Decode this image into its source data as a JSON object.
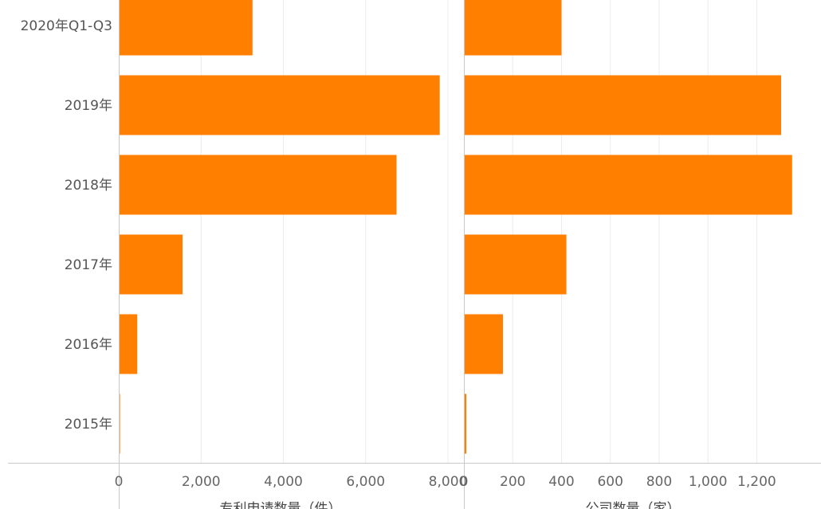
{
  "colors": {
    "bar": "#ff7f00",
    "grid": "#ececec",
    "axis": "#c8c8c8"
  },
  "chart_data": [
    {
      "type": "bar",
      "orientation": "horizontal",
      "categories": [
        "2020年Q1-Q3",
        "2019年",
        "2018年",
        "2017年",
        "2016年",
        "2015年"
      ],
      "values": [
        3250,
        7800,
        6750,
        1550,
        450,
        30
      ],
      "xlabel": "专利申请数量（件）",
      "xlim": [
        0,
        8000
      ],
      "xticks": [
        "0",
        "2,000",
        "4,000",
        "6,000",
        "8,000"
      ],
      "grid": true
    },
    {
      "type": "bar",
      "orientation": "horizontal",
      "categories": [
        "2020年Q1-Q3",
        "2019年",
        "2018年",
        "2017年",
        "2016年",
        "2015年"
      ],
      "values": [
        400,
        1300,
        1345,
        420,
        160,
        10
      ],
      "xlabel": "公司数量（家）",
      "xlim": [
        0,
        1350
      ],
      "xticks": [
        "0",
        "200",
        "400",
        "600",
        "800",
        "1,000",
        "1,200"
      ],
      "grid": true
    }
  ]
}
